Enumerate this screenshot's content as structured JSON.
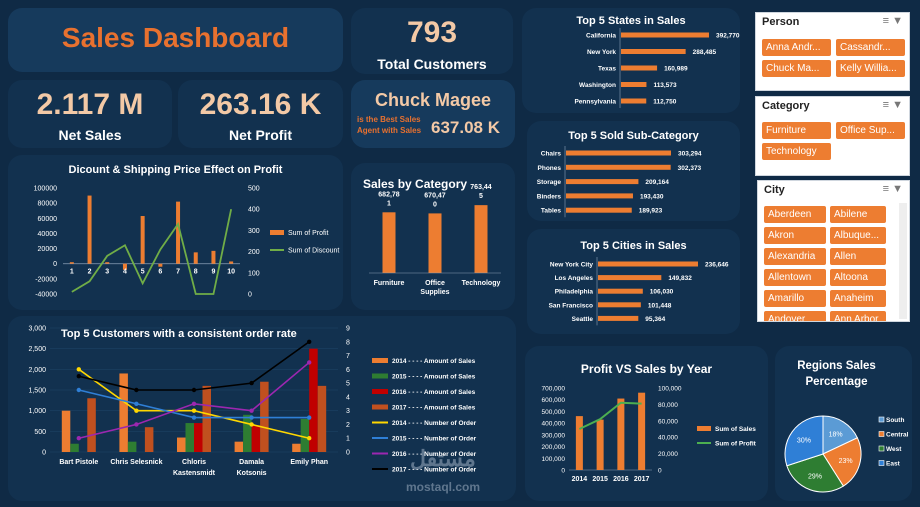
{
  "dashboard": {
    "title": "Sales Dashboard",
    "total_customers": {
      "value": "793",
      "label": "Total Customers"
    },
    "net_sales": {
      "value": "2.117 M",
      "label": "Net Sales"
    },
    "net_profit": {
      "value": "263.16 K",
      "label": "Net Profit"
    },
    "best_agent": {
      "name": "Chuck Magee",
      "caption_line1": "is the Best Sales",
      "caption_line2": "Agent with Sales",
      "value": "637.08 K"
    }
  },
  "slicers": {
    "person": {
      "title": "Person",
      "items": [
        "Anna Andr...",
        "Cassandr...",
        "Chuck Ma...",
        "Kelly Willia..."
      ]
    },
    "category": {
      "title": "Category",
      "items": [
        "Furniture",
        "Office Sup...",
        "Technology"
      ]
    },
    "city": {
      "title": "City",
      "items": [
        "Aberdeen",
        "Abilene",
        "Akron",
        "Albuque...",
        "Alexandria",
        "Allen",
        "Allentown",
        "Altoona",
        "Amarillo",
        "Anaheim",
        "Andover",
        "Ann Arbor"
      ]
    }
  },
  "icons": {
    "multi_select": "multi-select-icon",
    "clear_filter": "clear-filter-icon"
  },
  "colors": {
    "orange": "#ed7d31",
    "green": "#70ad47",
    "dark_green": "#2e7d32",
    "blue": "#4472c4",
    "red": "#c00000",
    "teal": "#5b9bd5",
    "gray": "#a5a5a5",
    "background": "#0f2a45",
    "panel": "#12314f"
  },
  "watermark": {
    "ar": "مستقل",
    "en": "mostaql.com"
  },
  "chart_data": [
    {
      "id": "discount_shipping",
      "type": "bar",
      "title": "Dicount & Shipping Price Effect on Profit",
      "categories": [
        "1",
        "2",
        "3",
        "4",
        "5",
        "6",
        "7",
        "8",
        "9",
        "10"
      ],
      "series": [
        {
          "name": "Sum of Profit",
          "type": "bar",
          "axis": "left",
          "values": [
            2000,
            90000,
            2000,
            -8000,
            63000,
            -4000,
            82000,
            15000,
            17000,
            3000
          ]
        },
        {
          "name": "Sum of Discount",
          "type": "line",
          "axis": "right",
          "values": [
            10,
            60,
            180,
            230,
            50,
            210,
            330,
            0,
            0,
            400
          ]
        }
      ],
      "left_ticks": [
        "100000",
        "80000",
        "60000",
        "40000",
        "20000",
        "0",
        "-20000",
        "-40000"
      ],
      "right_ticks": [
        "500",
        "400",
        "300",
        "200",
        "100",
        "0"
      ],
      "ylim_left": [
        -40000,
        100000
      ],
      "ylim_right": [
        0,
        500
      ],
      "legend": "right"
    },
    {
      "id": "sales_by_category",
      "type": "bar",
      "title": "Sales by Category",
      "categories": [
        "Furniture",
        "Office\nSupplies",
        "Technology"
      ],
      "values": [
        682781,
        670470,
        763445
      ],
      "data_labels": [
        "682,78\n1",
        "670,47\n0",
        "763,44\n5"
      ],
      "ylim": [
        0,
        900000
      ]
    },
    {
      "id": "top_states",
      "type": "bar",
      "orientation": "horizontal",
      "title": "Top 5 States in Sales",
      "categories": [
        "California",
        "New York",
        "Texas",
        "Washington",
        "Pennsylvania"
      ],
      "values": [
        392770,
        288485,
        160989,
        113573,
        112750
      ],
      "data_labels": [
        "392,770",
        "288,485",
        "160,989",
        "113,573",
        "112,750"
      ]
    },
    {
      "id": "top_subcategory",
      "type": "bar",
      "orientation": "horizontal",
      "title": "Top 5 Sold Sub-Category",
      "categories": [
        "Chairs",
        "Phones",
        "Storage",
        "Binders",
        "Tables"
      ],
      "values": [
        303294,
        302373,
        209164,
        193430,
        189923
      ],
      "data_labels": [
        "303,294",
        "302,373",
        "209,164",
        "193,430",
        "189,923"
      ]
    },
    {
      "id": "top_cities",
      "type": "bar",
      "orientation": "horizontal",
      "title": "Top 5 Cities in Sales",
      "categories": [
        "New York City",
        "Los Angeles",
        "Philadelphia",
        "San Francisco",
        "Seattle"
      ],
      "values": [
        236646,
        149832,
        106030,
        101448,
        95364
      ],
      "data_labels": [
        "236,646",
        "149,832",
        "106,030",
        "101,448",
        "95,364"
      ]
    },
    {
      "id": "top_customers",
      "type": "bar",
      "title": "Top 5 Customers with a consistent order rate",
      "categories": [
        "Bart Pistole",
        "Chris Selesnick",
        "Chloris\nKastensmidt",
        "Damala\nKotsonis",
        "Emily Phan"
      ],
      "series": [
        {
          "name": "2014 - - - - Amount of Sales",
          "type": "bar",
          "axis": "left",
          "color": "#ed7d31",
          "values": [
            1000,
            1900,
            350,
            250,
            200
          ]
        },
        {
          "name": "2015 - - - - Amount of Sales",
          "type": "bar",
          "axis": "left",
          "color": "#2e7d32",
          "values": [
            200,
            250,
            700,
            900,
            800
          ]
        },
        {
          "name": "2016 - - - - Amount of Sales",
          "type": "bar",
          "axis": "left",
          "color": "#c00000",
          "values": [
            0,
            0,
            700,
            650,
            2500
          ]
        },
        {
          "name": "2017 - - - - Amount of Sales",
          "type": "bar",
          "axis": "left",
          "color": "#c0501f",
          "values": [
            1300,
            600,
            1600,
            1700,
            1600
          ]
        },
        {
          "name": "2014 - - - - Number of Order",
          "type": "line",
          "axis": "right",
          "color": "#ffd700",
          "values": [
            6,
            3,
            3,
            2,
            1
          ]
        },
        {
          "name": "2015 - - - - Number of Order",
          "type": "line",
          "axis": "right",
          "color": "#2f7fd6",
          "values": [
            4.5,
            3.5,
            2.5,
            2.5,
            2.5
          ]
        },
        {
          "name": "2016 - - - - Number of Order",
          "type": "line",
          "axis": "right",
          "color": "#9c27b0",
          "values": [
            1,
            2,
            3.5,
            3,
            6.5
          ]
        },
        {
          "name": "2017 - - - - Number of Order",
          "type": "line",
          "axis": "right",
          "color": "#000000",
          "values": [
            5.5,
            4.5,
            4.5,
            5,
            8
          ]
        }
      ],
      "left_ticks": [
        "3,000",
        "2,500",
        "2,000",
        "1,500",
        "1,000",
        "500",
        "0"
      ],
      "right_ticks": [
        "9",
        "8",
        "7",
        "6",
        "5",
        "4",
        "3",
        "2",
        "1",
        "0"
      ],
      "ylim_left": [
        0,
        3000
      ],
      "ylim_right": [
        0,
        9
      ],
      "legend": "right"
    },
    {
      "id": "profit_vs_sales",
      "type": "bar",
      "title": "Profit VS Sales by Year",
      "categories": [
        "2014",
        "2015",
        "2016",
        "2017"
      ],
      "series": [
        {
          "name": "Sum of Sales",
          "type": "bar",
          "axis": "left",
          "values": [
            460000,
            430000,
            610000,
            660000
          ]
        },
        {
          "name": "Sum of Profit",
          "type": "line",
          "axis": "right",
          "values": [
            50000,
            62000,
            82000,
            81000
          ]
        }
      ],
      "left_ticks": [
        "700,000",
        "600,000",
        "500,000",
        "400,000",
        "300,000",
        "200,000",
        "100,000",
        "0"
      ],
      "right_ticks": [
        "100,000",
        "80,000",
        "60,000",
        "40,000",
        "20,000",
        "0"
      ],
      "ylim_left": [
        0,
        700000
      ],
      "ylim_right": [
        0,
        100000
      ],
      "legend": "right"
    },
    {
      "id": "regions_sales",
      "type": "pie",
      "title": "Regions Sales Percentage",
      "categories": [
        "South",
        "Central",
        "West",
        "East"
      ],
      "values": [
        18,
        23,
        29,
        30
      ],
      "data_labels": [
        "18%",
        "23%",
        "29%",
        "30%"
      ],
      "colors": [
        "#5b9bd5",
        "#ed7d31",
        "#2e7d32",
        "#2f7fd6"
      ],
      "legend": "right"
    }
  ]
}
